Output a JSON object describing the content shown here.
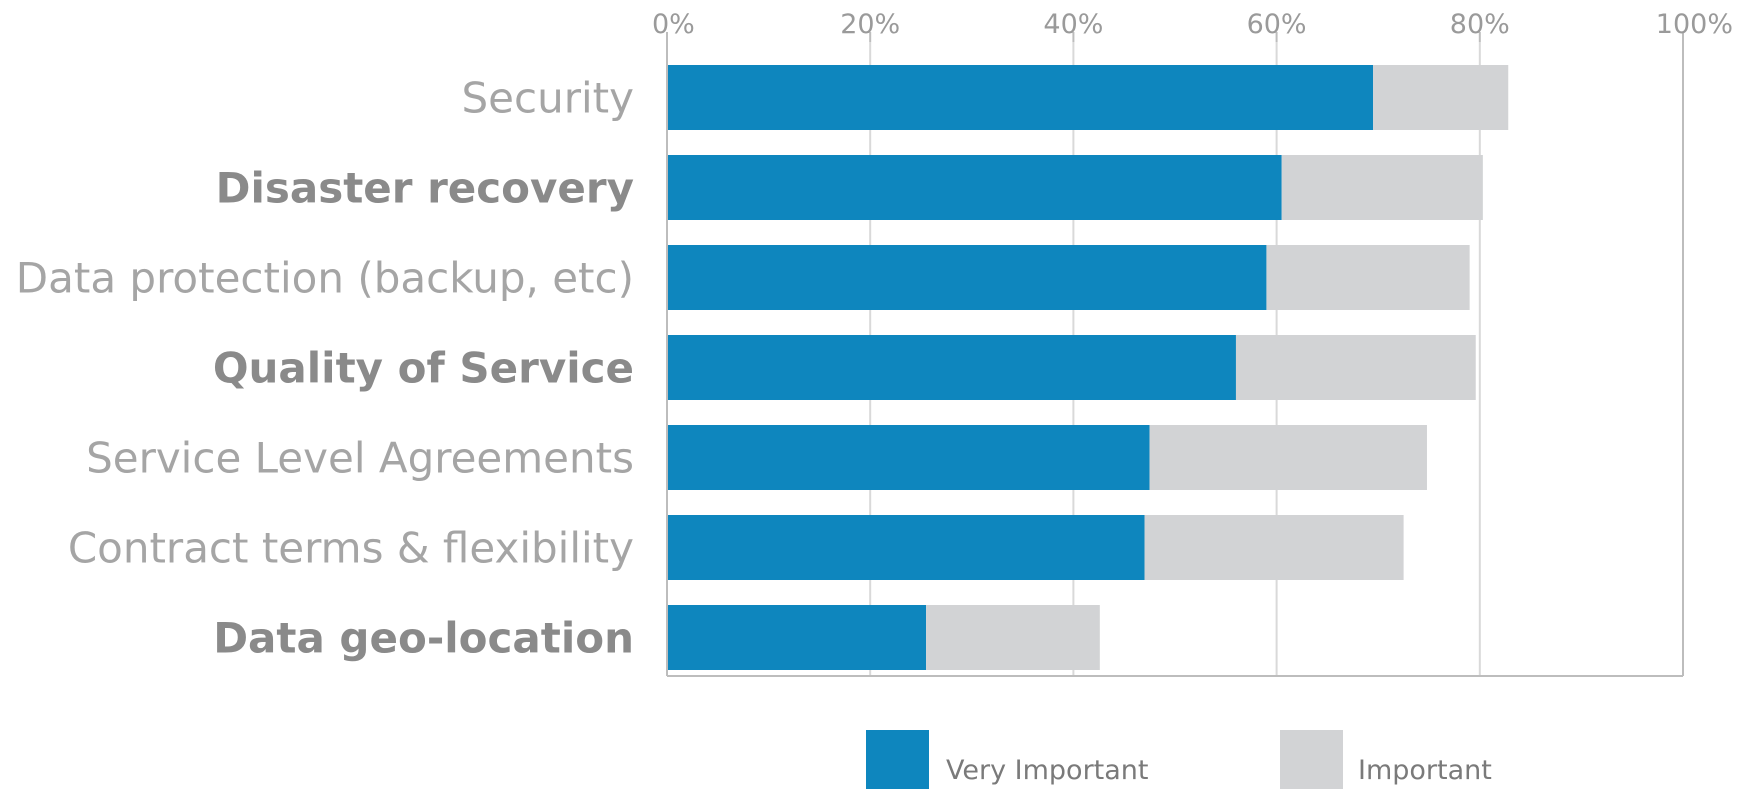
{
  "chart_data": {
    "type": "bar",
    "orientation": "horizontal",
    "stacked": true,
    "categories": [
      "Security",
      "Disaster recovery",
      "Data protection (backup, etc)",
      "Quality of Service",
      "Service Level Agreements",
      "Contract terms & flexibility",
      "Data geo-location"
    ],
    "category_bold": [
      false,
      true,
      false,
      true,
      false,
      false,
      true
    ],
    "series": [
      {
        "name": "Very Important",
        "color": "#0e86be",
        "values": [
          69.5,
          60.5,
          59,
          56,
          47.5,
          47,
          25.5
        ]
      },
      {
        "name": "Important",
        "color": "#d2d3d5",
        "values": [
          13.3,
          19.8,
          20,
          23.6,
          27.3,
          25.5,
          17.1
        ]
      }
    ],
    "xlim": [
      0,
      100
    ],
    "x_ticks": [
      "0%",
      "20%",
      "40%",
      "60%",
      "80%",
      "100%"
    ],
    "x_axis_position": "top",
    "grid": true,
    "legend_position": "bottom-center",
    "title": "",
    "xlabel": "",
    "ylabel": ""
  }
}
